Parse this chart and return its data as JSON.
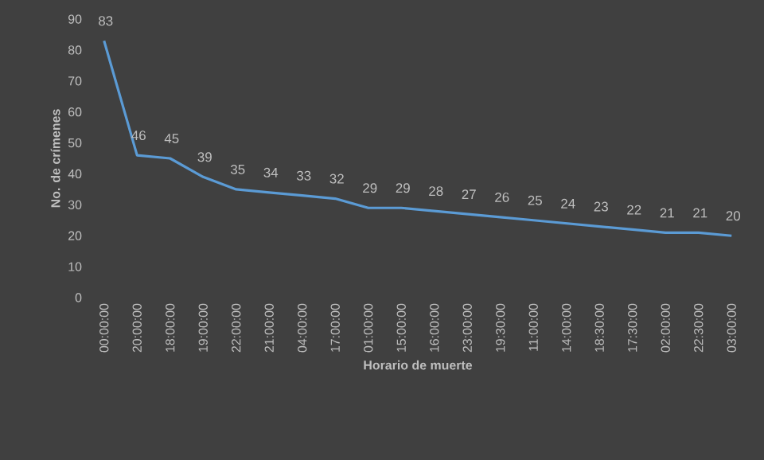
{
  "chart_data": {
    "type": "line",
    "xlabel": "Horario de muerte",
    "ylabel": "No. de crímenes",
    "categories": [
      "00:00:00",
      "20:00:00",
      "18:00:00",
      "19:00:00",
      "22:00:00",
      "21:00:00",
      "04:00:00",
      "17:00:00",
      "01:00:00",
      "15:00:00",
      "16:00:00",
      "23:00:00",
      "19:30:00",
      "11:00:00",
      "14:00:00",
      "18:30:00",
      "17:30:00",
      "02:00:00",
      "22:30:00",
      "03:00:00"
    ],
    "series": [
      {
        "color": "#5b9bd5",
        "values": [
          83,
          46,
          45,
          39,
          35,
          34,
          33,
          32,
          29,
          29,
          28,
          27,
          26,
          25,
          24,
          23,
          22,
          21,
          21,
          20
        ]
      }
    ],
    "ylim": [
      0,
      90
    ],
    "yticks": [
      0,
      10,
      20,
      30,
      40,
      50,
      60,
      70,
      80,
      90
    ],
    "data_labels": true,
    "marker": "none",
    "line_style": "solid"
  }
}
